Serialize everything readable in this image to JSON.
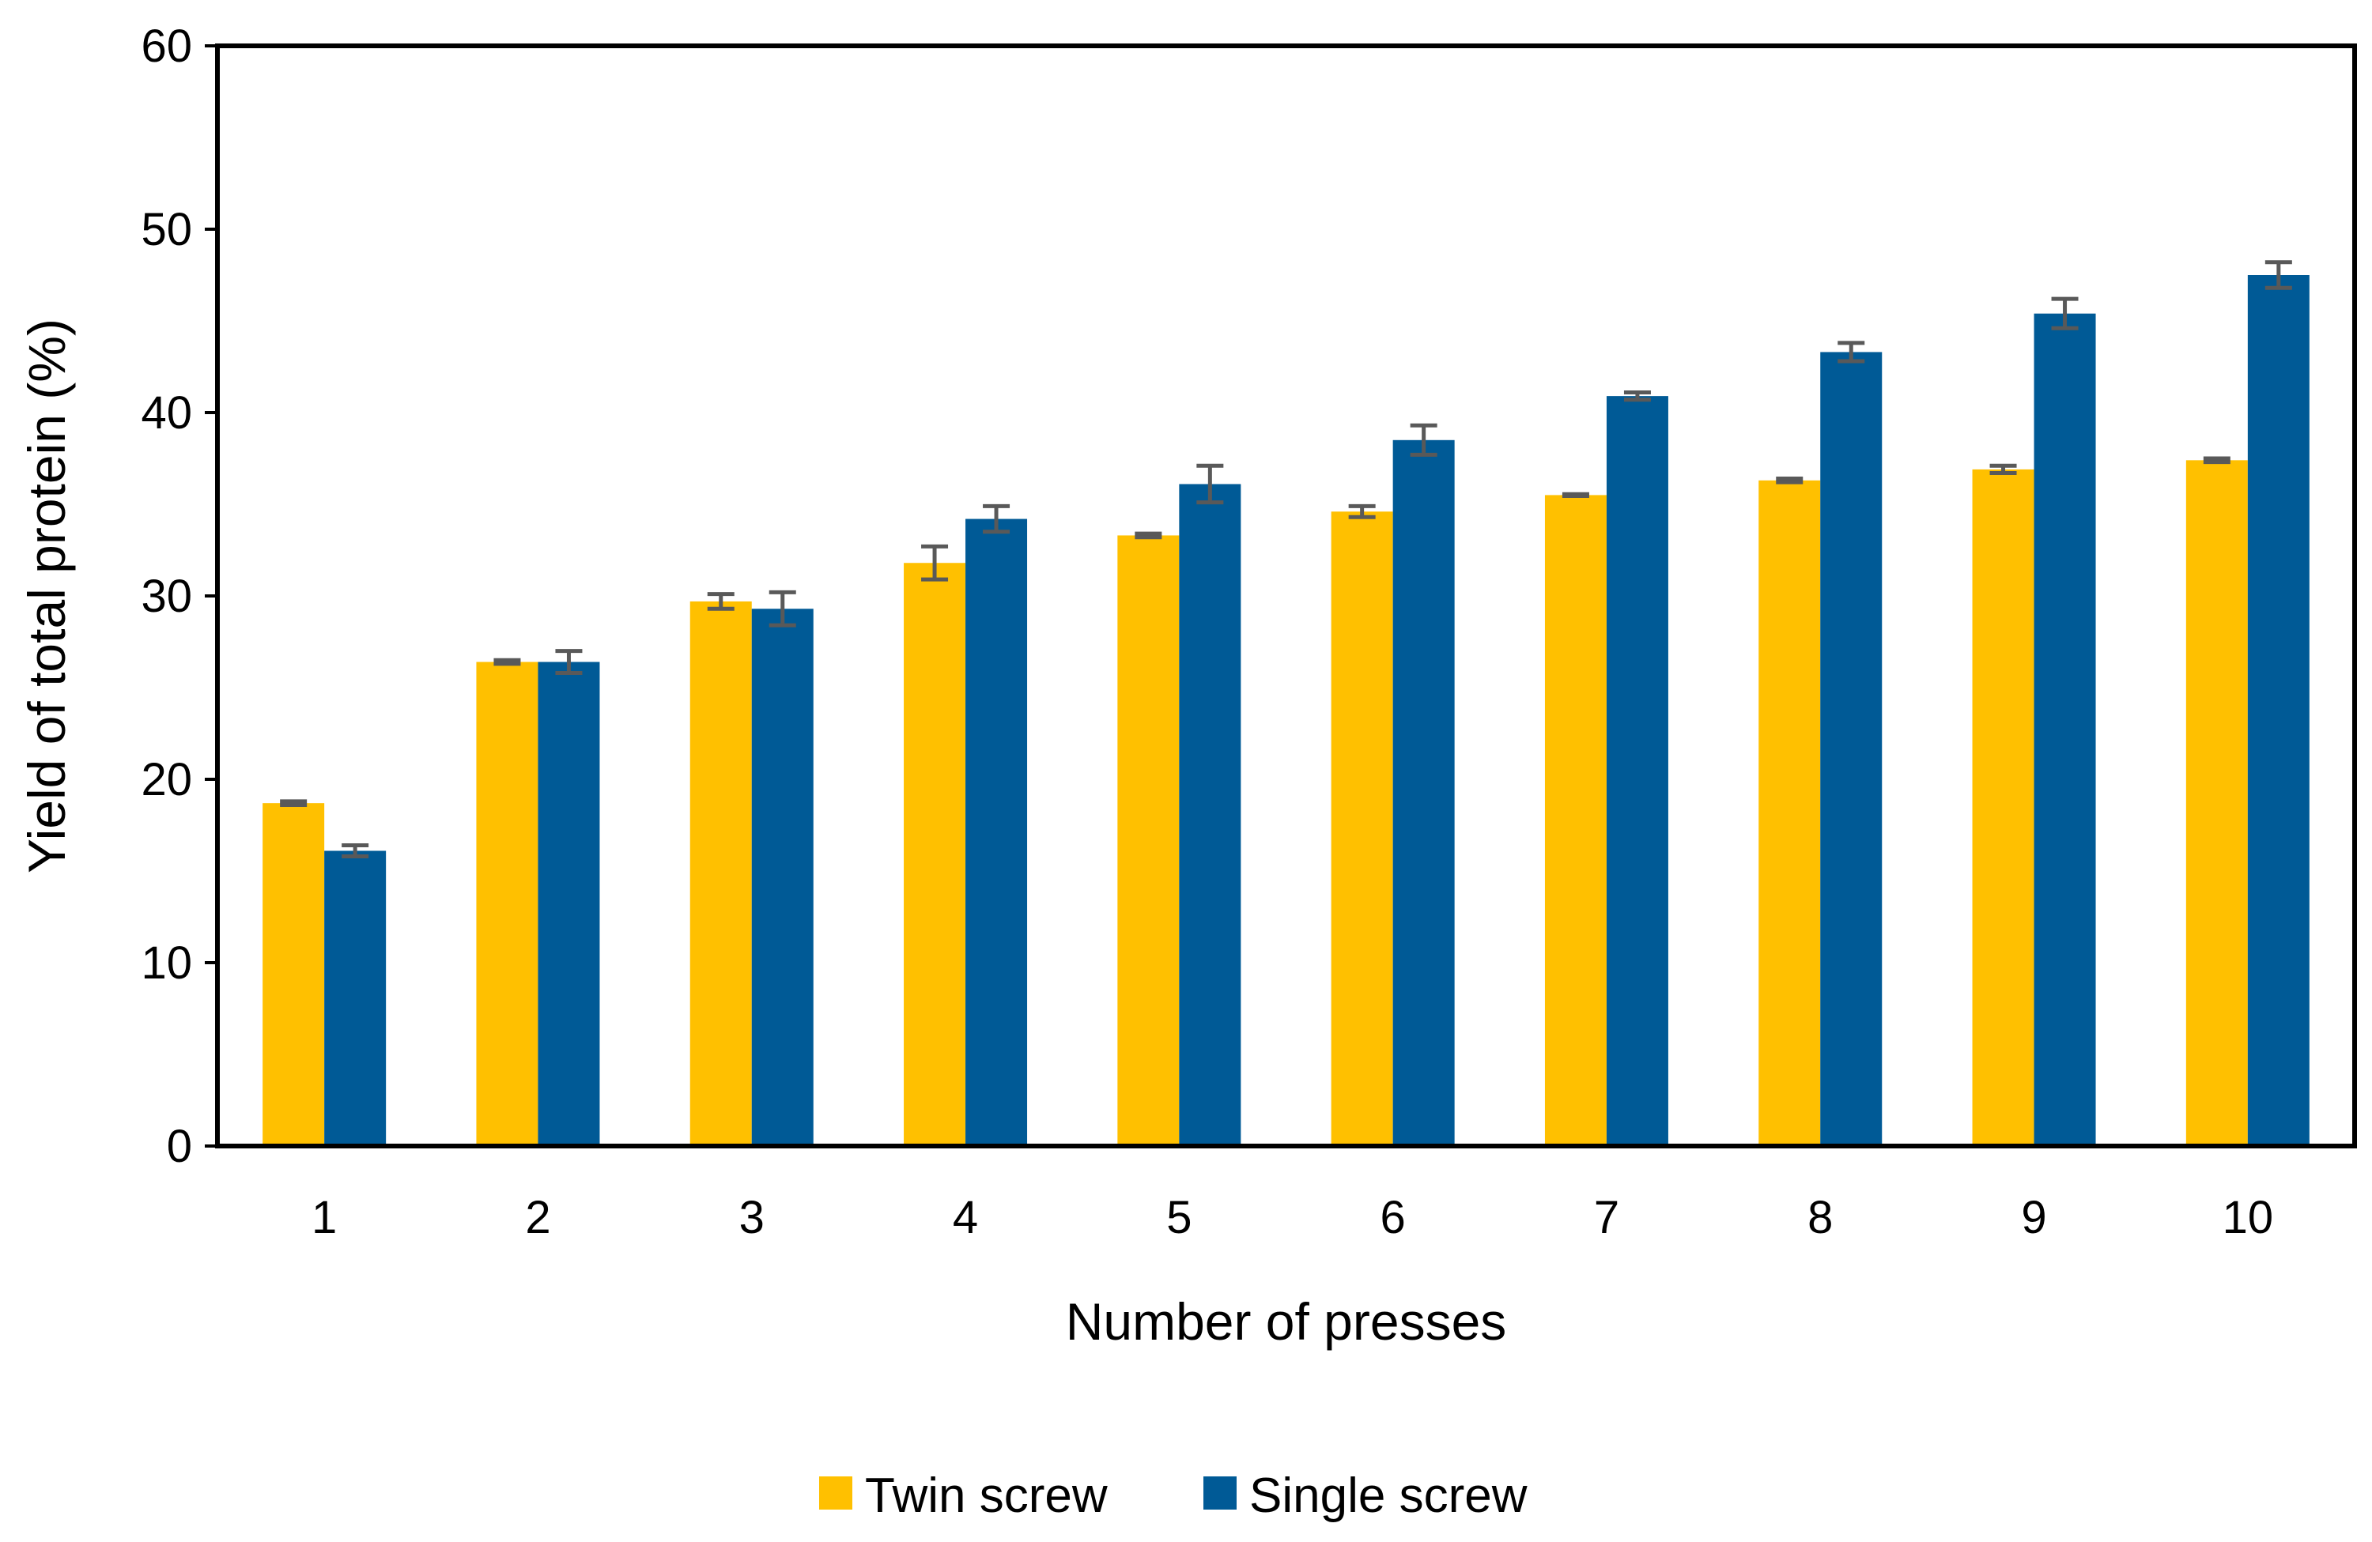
{
  "chart_data": {
    "type": "bar",
    "title": "",
    "xlabel": "Number of presses",
    "ylabel": "Yield of total protein (%)",
    "ylim": [
      0,
      60
    ],
    "yticks": [
      0,
      10,
      20,
      30,
      40,
      50,
      60
    ],
    "categories": [
      "1",
      "2",
      "3",
      "4",
      "5",
      "6",
      "7",
      "8",
      "9",
      "10"
    ],
    "grid": false,
    "legend_position": "bottom",
    "series": [
      {
        "name": "Twin screw",
        "color": "#FFC000",
        "values": [
          18.7,
          26.4,
          29.7,
          31.8,
          33.3,
          34.6,
          35.5,
          36.3,
          36.9,
          37.4
        ],
        "errors": [
          0.1,
          0.1,
          0.4,
          0.9,
          0.1,
          0.3,
          0.05,
          0.1,
          0.2,
          0.1
        ]
      },
      {
        "name": "Single screw",
        "color": "#005A96",
        "values": [
          16.1,
          26.4,
          29.3,
          34.2,
          36.1,
          38.5,
          40.9,
          43.3,
          45.4,
          47.5
        ],
        "errors": [
          0.3,
          0.6,
          0.9,
          0.7,
          1.0,
          0.8,
          0.2,
          0.5,
          0.8,
          0.7
        ]
      }
    ],
    "error_bar_color": "#595959"
  }
}
